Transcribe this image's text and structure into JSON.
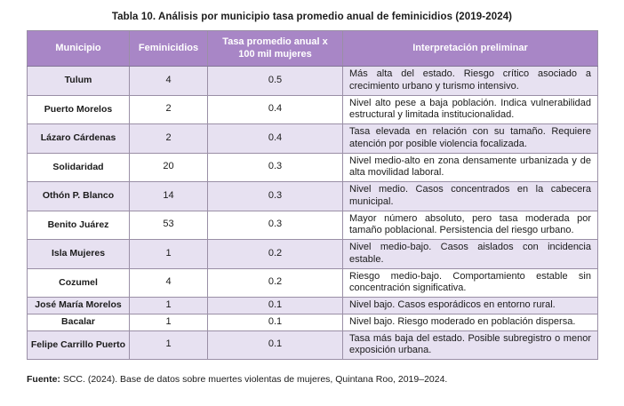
{
  "page": {
    "title": "Tabla 10. Análisis por municipio tasa promedio anual de feminicidios (2019-2024)",
    "source_label": "Fuente:",
    "source_text": " SCC. (2024). Base de datos sobre muertes violentas de mujeres, Quintana Roo, 2019–2024."
  },
  "colors": {
    "header_bg": "#a886c6",
    "header_text": "#ffffff",
    "row_alt_bg": "#e7e1f1",
    "row_bg": "#ffffff",
    "border": "#9a8fa6",
    "text": "#1b1b1b"
  },
  "table": {
    "columns": [
      "Municipio",
      "Feminicidios",
      "Tasa promedio anual x 100 mil mujeres",
      "Interpretación preliminar"
    ],
    "rows": [
      {
        "municipio": "Tulum",
        "feminicidios": "4",
        "tasa": "0.5",
        "interpretacion": "Más alta del estado. Riesgo crítico asociado a crecimiento urbano y turismo intensivo."
      },
      {
        "municipio": "Puerto Morelos",
        "feminicidios": "2",
        "tasa": "0.4",
        "interpretacion": "Nivel alto pese a baja población. Indica vulnerabilidad estructural y limitada institucionalidad."
      },
      {
        "municipio": "Lázaro Cárdenas",
        "feminicidios": "2",
        "tasa": "0.4",
        "interpretacion": "Tasa elevada en relación con su tamaño. Requiere atención por posible violencia focalizada."
      },
      {
        "municipio": "Solidaridad",
        "feminicidios": "20",
        "tasa": "0.3",
        "interpretacion": "Nivel medio-alto en zona densamente urbanizada y de alta movilidad laboral."
      },
      {
        "municipio": "Othón P. Blanco",
        "feminicidios": "14",
        "tasa": "0.3",
        "interpretacion": "Nivel medio. Casos concentrados en la cabecera municipal."
      },
      {
        "municipio": "Benito Juárez",
        "feminicidios": "53",
        "tasa": "0.3",
        "interpretacion": "Mayor número absoluto, pero tasa moderada por tamaño poblacional. Persistencia del riesgo urbano."
      },
      {
        "municipio": "Isla Mujeres",
        "feminicidios": "1",
        "tasa": "0.2",
        "interpretacion": "Nivel medio-bajo. Casos aislados con incidencia estable."
      },
      {
        "municipio": "Cozumel",
        "feminicidios": "4",
        "tasa": "0.2",
        "interpretacion": "Riesgo medio-bajo. Comportamiento estable sin concentración significativa."
      },
      {
        "municipio": "José María Morelos",
        "feminicidios": "1",
        "tasa": "0.1",
        "interpretacion": "Nivel bajo. Casos esporádicos en entorno rural."
      },
      {
        "municipio": "Bacalar",
        "feminicidios": "1",
        "tasa": "0.1",
        "interpretacion": "Nivel bajo. Riesgo moderado en población dispersa."
      },
      {
        "municipio": "Felipe Carrillo Puerto",
        "feminicidios": "1",
        "tasa": "0.1",
        "interpretacion": "Tasa más baja del estado. Posible subregistro o menor exposición urbana."
      }
    ]
  }
}
